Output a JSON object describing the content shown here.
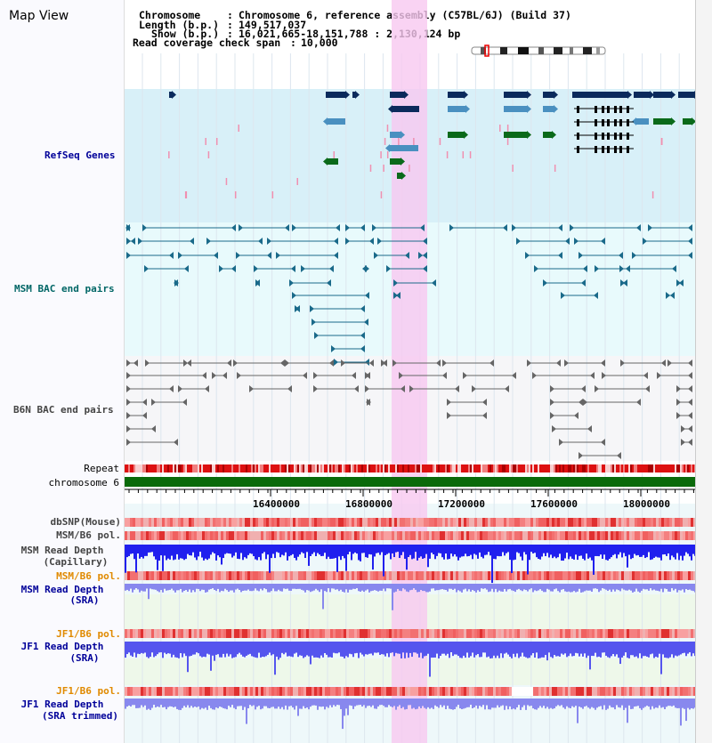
{
  "app": {
    "title": "Map View"
  },
  "info": {
    "chromosome_label": "Chromosome",
    "chromosome_value": "Chromosome 6, reference assembly (C57BL/6J) (Build 37)",
    "length_label": "Length (b.p.)",
    "length_value": "149,517,037",
    "show_label": "Show (b.p.)",
    "show_value": "16,021,665-18,151,788 : 2,130,124 bp",
    "read_label": "Read coverage check span",
    "read_value": "10,000"
  },
  "tracks": {
    "refseq": "RefSeq Genes",
    "msm_bac": "MSM BAC end pairs",
    "b6n_bac": "B6N BAC end pairs",
    "repeat": "Repeat",
    "chromosome": "chromosome 6",
    "dbsnp": "dbSNP(Mouse)",
    "msm_b6_pol_cap": "MSM/B6 pol.",
    "msm_depth_cap_1": "MSM Read Depth",
    "msm_depth_cap_2": "(Capillary)",
    "msm_b6_pol_sra": "MSM/B6 pol.",
    "msm_depth_sra_1": "MSM Read Depth",
    "msm_depth_sra_2": "(SRA)",
    "jf1_b6_pol_sra": "JF1/B6 pol.",
    "jf1_depth_sra_1": "JF1 Read Depth",
    "jf1_depth_sra_2": "(SRA)",
    "jf1_b6_pol_trim": "JF1/B6 pol.",
    "jf1_depth_trim_1": "JF1 Read Depth",
    "jf1_depth_trim_2": "(SRA trimmed)"
  },
  "axis": {
    "ticks": [
      "16400000",
      "16800000",
      "17200000",
      "17600000",
      "18000000"
    ]
  },
  "colors": {
    "refseq_bg": "#d8f0f8",
    "msm_bg": "#e8fafc",
    "b6n_bg": "#f6f6f8",
    "highlight": "#f8c8f0",
    "gene_dark": "#0a2a5c",
    "gene_mid": "#4a90c0",
    "gene_green": "#0a6a1a",
    "msm_line": "#1a6a8a",
    "b6n_line": "#666666",
    "chromosome_bar": "#0a6a0a",
    "label_orange": "#e08a00",
    "label_blue": "#000099",
    "label_teal": "#006666"
  }
}
